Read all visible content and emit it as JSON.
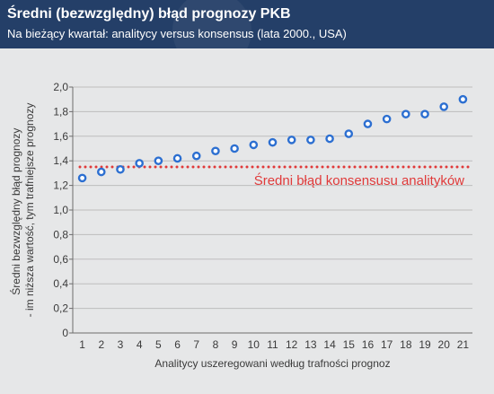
{
  "header": {
    "title": "Średni (bezwzględny) błąd prognozy PKB",
    "subtitle": "Na bieżący kwartał: analitycy versus konsensus (lata 2000., USA)"
  },
  "colors": {
    "header_bg": "#243f68",
    "background": "#e6e7e8",
    "series": "#2c6fd1",
    "reference_line": "#e03a3a",
    "grid": "#bdbdbd"
  },
  "chart_data": {
    "type": "scatter",
    "title": "Średni (bezwzględny) błąd prognozy PKB",
    "subtitle": "Na bieżący kwartał: analitycy versus konsensus (lata 2000., USA)",
    "xlabel": "Analitycy uszeregowani według trafności prognoz",
    "ylabel_lines": [
      "Średni bezwzględny błąd prognozy",
      "- im niższa wartość, tym trafniejsze prognozy"
    ],
    "x": [
      1,
      2,
      3,
      4,
      5,
      6,
      7,
      8,
      9,
      10,
      11,
      12,
      13,
      14,
      15,
      16,
      17,
      18,
      19,
      20,
      21
    ],
    "y": [
      1.26,
      1.31,
      1.33,
      1.38,
      1.4,
      1.42,
      1.44,
      1.48,
      1.5,
      1.53,
      1.55,
      1.57,
      1.57,
      1.58,
      1.62,
      1.7,
      1.74,
      1.78,
      1.78,
      1.84,
      1.9
    ],
    "xlim": [
      0.5,
      21.5
    ],
    "ylim": [
      0,
      2.0
    ],
    "yticks": [
      "0",
      "0,2",
      "0,4",
      "0,6",
      "0,8",
      "1,0",
      "1,2",
      "1,4",
      "1,6",
      "1,8",
      "2,0"
    ],
    "xticks": [
      "1",
      "2",
      "3",
      "4",
      "5",
      "6",
      "7",
      "8",
      "9",
      "10",
      "11",
      "12",
      "13",
      "14",
      "15",
      "16",
      "17",
      "18",
      "19",
      "20",
      "21"
    ],
    "grid": "horizontal",
    "reference_line": {
      "y": 1.35,
      "label": "Średni błąd konsensusu analityków"
    }
  }
}
